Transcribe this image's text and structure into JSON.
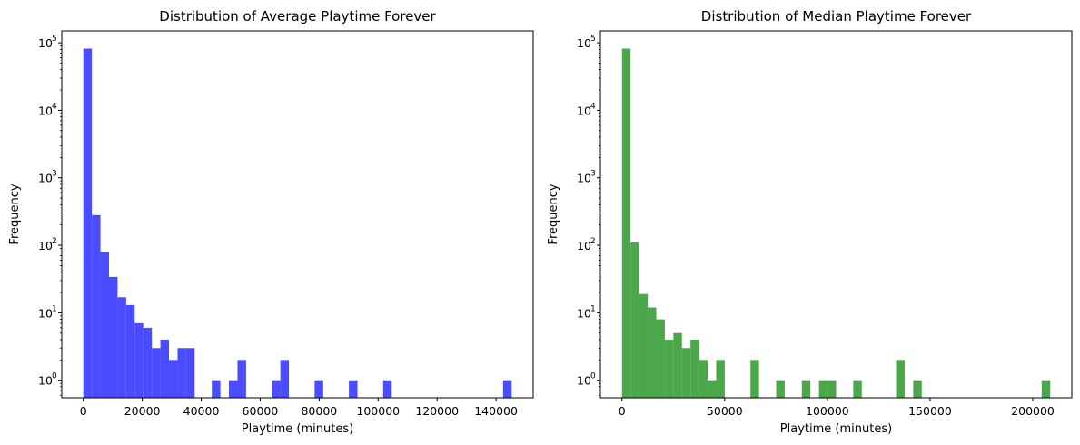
{
  "chart_data": [
    {
      "type": "bar",
      "title": "Distribution of Average Playtime Forever",
      "xlabel": "Playtime (minutes)",
      "ylabel": "Frequency",
      "yscale": "log",
      "ylim": [
        0.55,
        150000
      ],
      "xlim": [
        -7300,
        152600
      ],
      "xticks": [
        0,
        20000,
        40000,
        60000,
        80000,
        100000,
        120000,
        140000
      ],
      "yticks": [
        {
          "value": 1,
          "base": "10",
          "exp": "0"
        },
        {
          "value": 10,
          "base": "10",
          "exp": "1"
        },
        {
          "value": 100,
          "base": "10",
          "exp": "2"
        },
        {
          "value": 1000,
          "base": "10",
          "exp": "3"
        },
        {
          "value": 10000,
          "base": "10",
          "exp": "4"
        },
        {
          "value": 100000,
          "base": "10",
          "exp": "5"
        }
      ],
      "color": "#4c4cff",
      "bins": {
        "start": 0,
        "end": 145300,
        "count": 50
      },
      "values": [
        82000,
        280,
        80,
        34,
        17,
        13,
        7,
        6,
        3,
        4,
        2,
        3,
        3,
        0,
        0,
        1,
        0,
        1,
        2,
        0,
        0,
        0,
        1,
        2,
        0,
        0,
        0,
        1,
        0,
        0,
        0,
        1,
        0,
        0,
        0,
        1,
        0,
        0,
        0,
        0,
        0,
        0,
        0,
        0,
        0,
        0,
        0,
        0,
        0,
        1
      ],
      "grid": false,
      "legend": "none"
    },
    {
      "type": "bar",
      "title": "Distribution of Median Playtime Forever",
      "xlabel": "Playtime (minutes)",
      "ylabel": "Frequency",
      "yscale": "log",
      "ylim": [
        0.55,
        150000
      ],
      "xlim": [
        -10500,
        219000
      ],
      "xticks": [
        0,
        50000,
        100000,
        150000,
        200000
      ],
      "yticks": [
        {
          "value": 1,
          "base": "10",
          "exp": "0"
        },
        {
          "value": 10,
          "base": "10",
          "exp": "1"
        },
        {
          "value": 100,
          "base": "10",
          "exp": "2"
        },
        {
          "value": 1000,
          "base": "10",
          "exp": "3"
        },
        {
          "value": 10000,
          "base": "10",
          "exp": "4"
        },
        {
          "value": 100000,
          "base": "10",
          "exp": "5"
        }
      ],
      "color": "#4ca64c",
      "bins": {
        "start": 0,
        "end": 208500,
        "count": 50
      },
      "values": [
        82000,
        110,
        19,
        12,
        8,
        4,
        5,
        3,
        4,
        2,
        1,
        2,
        0,
        0,
        0,
        2,
        0,
        0,
        1,
        0,
        0,
        1,
        0,
        1,
        1,
        0,
        0,
        1,
        0,
        0,
        0,
        0,
        2,
        0,
        1,
        0,
        0,
        0,
        0,
        0,
        0,
        0,
        0,
        0,
        0,
        0,
        0,
        0,
        0,
        1
      ],
      "grid": false,
      "legend": "none"
    }
  ]
}
